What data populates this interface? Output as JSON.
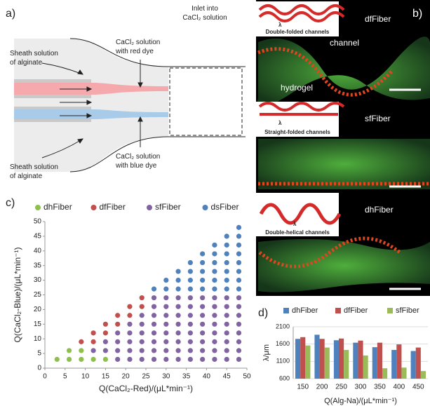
{
  "panel_labels": [
    "a)",
    "b)",
    "c)",
    "d)"
  ],
  "diagram": {
    "inlet": [
      "Inlet into",
      "CaCl₂ solution"
    ],
    "sheath_top": [
      "Sheath solution",
      "of alginate"
    ],
    "sheath_bottom": [
      "Sheath solution",
      "of alginate"
    ],
    "red_stream": [
      "CaCl₂ solution",
      "with red dye"
    ],
    "blue_stream": [
      "CaCl₂ solution",
      "with blue dye"
    ]
  },
  "micrographs": [
    {
      "caption": "Double-folded channels",
      "fiber": "dfFiber",
      "lambda": "λ",
      "channel": "channel",
      "hydrogel": "hydrogel"
    },
    {
      "caption": "Straight-folded channels",
      "fiber": "sfFiber",
      "lambda": "λ"
    },
    {
      "caption": "Double-helical channels",
      "fiber": "dhFiber",
      "lambda": "λ"
    }
  ],
  "chart_data": [
    {
      "type": "scatter",
      "xlabel": "Q(CaCl₂-Red)/(μL*min⁻¹)",
      "ylabel": "Q(CaCl₂-Blue)/(μL*min⁻¹)",
      "xlim": [
        0,
        50
      ],
      "ylim": [
        0,
        50
      ],
      "xticks": [
        0,
        5,
        10,
        15,
        20,
        25,
        30,
        35,
        40,
        45,
        50
      ],
      "yticks": [
        0,
        5,
        10,
        15,
        20,
        25,
        30,
        35,
        40,
        45,
        50
      ],
      "legend": "top",
      "series": [
        {
          "name": "dhFiber",
          "color": "#8dc04a",
          "x": [
            3,
            6,
            6,
            9,
            9,
            12,
            15
          ],
          "y": [
            3,
            3,
            6,
            3,
            6,
            3,
            3
          ]
        },
        {
          "name": "dfFiber",
          "color": "#c0504d",
          "x": [
            9,
            12,
            12,
            15,
            15,
            18,
            18,
            21,
            21,
            24,
            24
          ],
          "y": [
            9,
            9,
            12,
            12,
            15,
            15,
            18,
            18,
            21,
            21,
            24
          ]
        },
        {
          "name": "sfFiber",
          "color": "#8064a2",
          "x": [
            12,
            15,
            15,
            18,
            18,
            18,
            18,
            21,
            21,
            21,
            21,
            21,
            24,
            24,
            24,
            24,
            24,
            24,
            27,
            27,
            27,
            27,
            27,
            27,
            27,
            27,
            30,
            30,
            30,
            30,
            30,
            30,
            30,
            30,
            33,
            33,
            33,
            33,
            33,
            33,
            33,
            33,
            36,
            36,
            36,
            36,
            36,
            36,
            36,
            36,
            39,
            39,
            39,
            39,
            39,
            39,
            39,
            39,
            42,
            42,
            42,
            42,
            42,
            42,
            42,
            42,
            45,
            45,
            45,
            45,
            45,
            45,
            45,
            45,
            48,
            48,
            48,
            48,
            48,
            48,
            48,
            48
          ],
          "y": [
            6,
            6,
            9,
            3,
            6,
            9,
            12,
            3,
            6,
            9,
            12,
            15,
            3,
            6,
            9,
            12,
            15,
            18,
            3,
            6,
            9,
            12,
            15,
            18,
            21,
            24,
            3,
            6,
            9,
            12,
            15,
            18,
            21,
            24,
            3,
            6,
            9,
            12,
            15,
            18,
            21,
            24,
            3,
            6,
            9,
            12,
            15,
            18,
            21,
            24,
            3,
            6,
            9,
            12,
            15,
            18,
            21,
            24,
            3,
            6,
            9,
            12,
            15,
            18,
            21,
            24,
            3,
            6,
            9,
            12,
            15,
            18,
            21,
            24,
            3,
            6,
            9,
            12,
            15,
            18,
            21,
            24
          ]
        },
        {
          "name": "dsFiber",
          "color": "#4f81bd",
          "x": [
            27,
            30,
            30,
            33,
            33,
            33,
            36,
            36,
            36,
            36,
            39,
            39,
            39,
            39,
            39,
            42,
            42,
            42,
            42,
            42,
            42,
            45,
            45,
            45,
            45,
            45,
            45,
            45,
            48,
            48,
            48,
            48,
            48,
            48,
            48,
            48
          ],
          "y": [
            27,
            27,
            30,
            27,
            30,
            33,
            27,
            30,
            33,
            36,
            27,
            30,
            33,
            36,
            39,
            27,
            30,
            33,
            36,
            39,
            42,
            27,
            30,
            33,
            36,
            39,
            42,
            45,
            27,
            30,
            33,
            36,
            39,
            42,
            45,
            48
          ]
        }
      ]
    },
    {
      "type": "bar",
      "xlabel": "Q(Alg-Na)/(μL*min⁻¹)",
      "ylabel": "λ/μm",
      "categories": [
        "150",
        "200",
        "250",
        "300",
        "350",
        "400",
        "450"
      ],
      "ylim": [
        600,
        2100
      ],
      "yticks": [
        600,
        1100,
        1600,
        2100
      ],
      "grid": true,
      "legend": "top",
      "series": [
        {
          "name": "dhFiber",
          "color": "#4f81bd",
          "values": [
            1750,
            1870,
            1710,
            1640,
            1510,
            1430,
            1400
          ]
        },
        {
          "name": "dfFiber",
          "color": "#c0504d",
          "values": [
            1800,
            1750,
            1760,
            1700,
            1640,
            1590,
            1500
          ]
        },
        {
          "name": "sfFiber",
          "color": "#9bbb59",
          "values": [
            1560,
            1500,
            1430,
            1270,
            900,
            920,
            820
          ]
        }
      ]
    }
  ]
}
